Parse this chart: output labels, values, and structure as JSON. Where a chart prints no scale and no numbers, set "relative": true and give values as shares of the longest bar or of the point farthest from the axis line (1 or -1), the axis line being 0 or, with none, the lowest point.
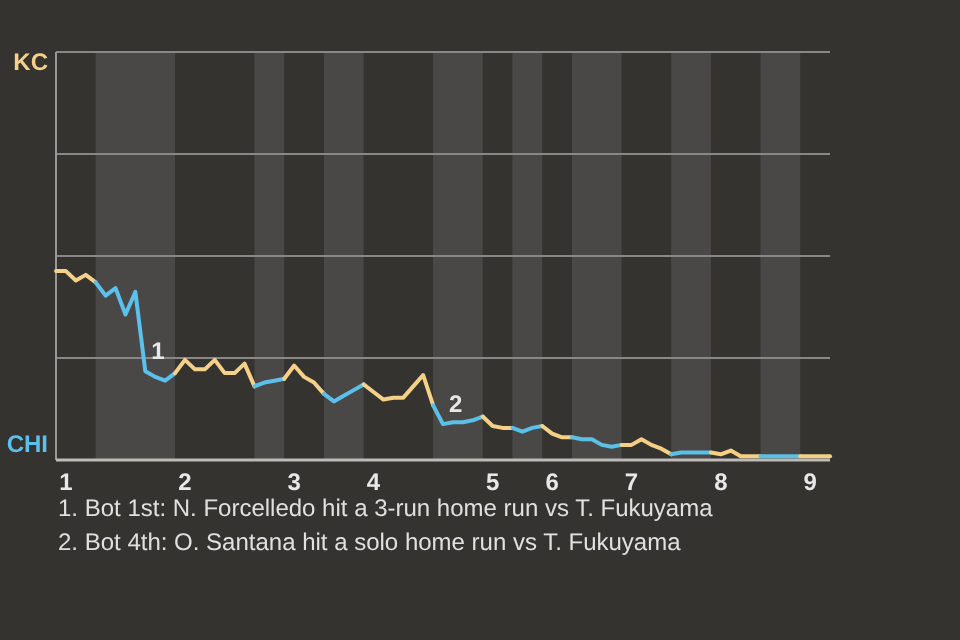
{
  "chart_data": {
    "type": "line",
    "relative": true,
    "categories": [
      null,
      "1",
      null,
      null,
      null,
      null,
      null,
      null,
      null,
      null,
      null,
      null,
      null,
      "2",
      null,
      null,
      null,
      null,
      null,
      null,
      null,
      null,
      null,
      null,
      "3",
      null,
      null,
      null,
      null,
      null,
      null,
      null,
      "4",
      null,
      null,
      null,
      null,
      null,
      null,
      null,
      null,
      null,
      null,
      null,
      "5",
      null,
      null,
      null,
      null,
      null,
      "6",
      null,
      null,
      null,
      null,
      null,
      null,
      null,
      "7",
      null,
      null,
      null,
      null,
      null,
      null,
      null,
      null,
      "8",
      null,
      null,
      null,
      null,
      null,
      null,
      null,
      null,
      "9",
      null,
      null
    ],
    "series": [
      {
        "name": "KC",
        "color": "#f5d08a",
        "values": [
          1,
          1,
          0.95,
          0.98,
          0.94,
          null,
          null,
          null,
          null,
          null,
          null,
          null,
          null,
          null,
          null,
          null,
          null,
          null,
          null,
          null,
          null,
          null,
          null,
          null,
          null,
          null,
          null,
          null,
          null,
          null,
          null,
          null,
          null,
          null,
          null,
          null,
          null,
          null,
          null,
          null,
          null,
          null,
          null,
          null,
          null,
          null,
          null,
          null,
          null,
          null,
          null,
          null,
          null,
          null,
          null,
          null,
          null,
          null,
          null,
          null,
          null,
          null,
          null,
          null,
          null,
          null,
          null,
          null,
          null,
          null,
          null,
          null,
          null,
          null,
          null,
          null,
          null,
          null,
          null
        ]
      },
      {
        "name": "CHI",
        "color": "#5bc0eb",
        "values": [
          null,
          null,
          null,
          null,
          0.94,
          0.87,
          0.91,
          0.77,
          0.89,
          0.47,
          0.44,
          0.42,
          0.46,
          null,
          null,
          null,
          null,
          null,
          null,
          null,
          null,
          null,
          null,
          null,
          null,
          null,
          null,
          null,
          null,
          null,
          null,
          null,
          null,
          null,
          null,
          null,
          null,
          null,
          null,
          null,
          null,
          null,
          null,
          null,
          null,
          null,
          null,
          null,
          null,
          null,
          null,
          null,
          null,
          null,
          null,
          null,
          null,
          null,
          null,
          null,
          null,
          null,
          null,
          null,
          null,
          null,
          null,
          null,
          null,
          null,
          null,
          null,
          null,
          null,
          null,
          null,
          null,
          null,
          null
        ]
      },
      {
        "color": "#f5d089",
        "values": [
          null,
          null,
          null,
          null,
          null,
          null,
          null,
          null,
          null,
          null,
          null,
          null,
          0.46,
          0.53,
          0.48,
          0.48,
          0.53,
          0.46,
          0.46,
          0.51,
          0.39,
          null,
          null,
          null,
          null,
          null,
          null,
          null,
          null,
          null,
          null,
          null,
          null,
          null,
          null,
          null,
          null,
          null,
          null,
          null,
          null,
          null,
          null,
          null,
          null,
          null,
          null,
          null,
          null,
          null,
          null,
          null,
          null,
          null,
          null,
          null,
          null,
          null,
          null,
          null,
          null,
          null,
          null,
          null,
          null,
          null,
          null,
          null,
          null,
          null,
          null,
          null,
          null,
          null,
          null,
          null,
          null,
          null,
          null
        ]
      },
      {
        "color": "#5bc0ea",
        "values": [
          null,
          null,
          null,
          null,
          null,
          null,
          null,
          null,
          null,
          null,
          null,
          null,
          null,
          null,
          null,
          null,
          null,
          null,
          null,
          null,
          0.39,
          0.41,
          0.42,
          0.43,
          null,
          null,
          null,
          null,
          null,
          null,
          null,
          null,
          null,
          null,
          null,
          null,
          null,
          null,
          null,
          null,
          null,
          null,
          null,
          null,
          null,
          null,
          null,
          null,
          null,
          null,
          null,
          null,
          null,
          null,
          null,
          null,
          null,
          null,
          null,
          null,
          null,
          null,
          null,
          null,
          null,
          null,
          null,
          null,
          null,
          null,
          null,
          null,
          null,
          null,
          null,
          null,
          null,
          null,
          null
        ]
      },
      {
        "color": "#f5d088",
        "values": [
          null,
          null,
          null,
          null,
          null,
          null,
          null,
          null,
          null,
          null,
          null,
          null,
          null,
          null,
          null,
          null,
          null,
          null,
          null,
          null,
          null,
          null,
          null,
          0.43,
          0.5,
          0.44,
          0.41,
          0.35,
          null,
          null,
          null,
          null,
          null,
          null,
          null,
          null,
          null,
          null,
          null,
          null,
          null,
          null,
          null,
          null,
          null,
          null,
          null,
          null,
          null,
          null,
          null,
          null,
          null,
          null,
          null,
          null,
          null,
          null,
          null,
          null,
          null,
          null,
          null,
          null,
          null,
          null,
          null,
          null,
          null,
          null,
          null,
          null,
          null,
          null,
          null,
          null,
          null,
          null,
          null
        ]
      },
      {
        "color": "#5bc0e9",
        "values": [
          null,
          null,
          null,
          null,
          null,
          null,
          null,
          null,
          null,
          null,
          null,
          null,
          null,
          null,
          null,
          null,
          null,
          null,
          null,
          null,
          null,
          null,
          null,
          null,
          null,
          null,
          null,
          0.35,
          0.31,
          0.34,
          0.37,
          0.4,
          null,
          null,
          null,
          null,
          null,
          null,
          null,
          null,
          null,
          null,
          null,
          null,
          null,
          null,
          null,
          null,
          null,
          null,
          null,
          null,
          null,
          null,
          null,
          null,
          null,
          null,
          null,
          null,
          null,
          null,
          null,
          null,
          null,
          null,
          null,
          null,
          null,
          null,
          null,
          null,
          null,
          null,
          null,
          null,
          null,
          null,
          null
        ]
      },
      {
        "color": "#f5d087",
        "values": [
          null,
          null,
          null,
          null,
          null,
          null,
          null,
          null,
          null,
          null,
          null,
          null,
          null,
          null,
          null,
          null,
          null,
          null,
          null,
          null,
          null,
          null,
          null,
          null,
          null,
          null,
          null,
          null,
          null,
          null,
          null,
          0.4,
          0.36,
          0.32,
          0.33,
          0.33,
          0.39,
          0.45,
          0.29,
          null,
          null,
          null,
          null,
          null,
          null,
          null,
          null,
          null,
          null,
          null,
          null,
          null,
          null,
          null,
          null,
          null,
          null,
          null,
          null,
          null,
          null,
          null,
          null,
          null,
          null,
          null,
          null,
          null,
          null,
          null,
          null,
          null,
          null,
          null,
          null,
          null,
          null,
          null,
          null
        ]
      },
      {
        "color": "#5bc0e8",
        "values": [
          null,
          null,
          null,
          null,
          null,
          null,
          null,
          null,
          null,
          null,
          null,
          null,
          null,
          null,
          null,
          null,
          null,
          null,
          null,
          null,
          null,
          null,
          null,
          null,
          null,
          null,
          null,
          null,
          null,
          null,
          null,
          null,
          null,
          null,
          null,
          null,
          null,
          null,
          0.29,
          0.19,
          0.2,
          0.2,
          0.21,
          0.23,
          null,
          null,
          null,
          null,
          null,
          null,
          null,
          null,
          null,
          null,
          null,
          null,
          null,
          null,
          null,
          null,
          null,
          null,
          null,
          null,
          null,
          null,
          null,
          null,
          null,
          null,
          null,
          null,
          null,
          null,
          null,
          null,
          null,
          null,
          null
        ]
      },
      {
        "color": "#f5d086",
        "values": [
          null,
          null,
          null,
          null,
          null,
          null,
          null,
          null,
          null,
          null,
          null,
          null,
          null,
          null,
          null,
          null,
          null,
          null,
          null,
          null,
          null,
          null,
          null,
          null,
          null,
          null,
          null,
          null,
          null,
          null,
          null,
          null,
          null,
          null,
          null,
          null,
          null,
          null,
          null,
          null,
          null,
          null,
          null,
          0.23,
          0.18,
          0.17,
          0.17,
          null,
          null,
          null,
          null,
          null,
          null,
          null,
          null,
          null,
          null,
          null,
          null,
          null,
          null,
          null,
          null,
          null,
          null,
          null,
          null,
          null,
          null,
          null,
          null,
          null,
          null,
          null,
          null,
          null,
          null,
          null,
          null
        ]
      },
      {
        "color": "#5bc0e7",
        "values": [
          null,
          null,
          null,
          null,
          null,
          null,
          null,
          null,
          null,
          null,
          null,
          null,
          null,
          null,
          null,
          null,
          null,
          null,
          null,
          null,
          null,
          null,
          null,
          null,
          null,
          null,
          null,
          null,
          null,
          null,
          null,
          null,
          null,
          null,
          null,
          null,
          null,
          null,
          null,
          null,
          null,
          null,
          null,
          null,
          null,
          null,
          0.17,
          0.15,
          0.17,
          0.18,
          null,
          null,
          null,
          null,
          null,
          null,
          null,
          null,
          null,
          null,
          null,
          null,
          null,
          null,
          null,
          null,
          null,
          null,
          null,
          null,
          null,
          null,
          null,
          null,
          null,
          null,
          null,
          null,
          null
        ]
      },
      {
        "color": "#f5d085",
        "values": [
          null,
          null,
          null,
          null,
          null,
          null,
          null,
          null,
          null,
          null,
          null,
          null,
          null,
          null,
          null,
          null,
          null,
          null,
          null,
          null,
          null,
          null,
          null,
          null,
          null,
          null,
          null,
          null,
          null,
          null,
          null,
          null,
          null,
          null,
          null,
          null,
          null,
          null,
          null,
          null,
          null,
          null,
          null,
          null,
          null,
          null,
          null,
          null,
          null,
          0.18,
          0.14,
          0.12,
          0.12,
          null,
          null,
          null,
          null,
          null,
          null,
          null,
          null,
          null,
          null,
          null,
          null,
          null,
          null,
          null,
          null,
          null,
          null,
          null,
          null,
          null,
          null,
          null,
          null,
          null,
          null
        ]
      },
      {
        "color": "#5bc0e6",
        "values": [
          null,
          null,
          null,
          null,
          null,
          null,
          null,
          null,
          null,
          null,
          null,
          null,
          null,
          null,
          null,
          null,
          null,
          null,
          null,
          null,
          null,
          null,
          null,
          null,
          null,
          null,
          null,
          null,
          null,
          null,
          null,
          null,
          null,
          null,
          null,
          null,
          null,
          null,
          null,
          null,
          null,
          null,
          null,
          null,
          null,
          null,
          null,
          null,
          null,
          null,
          null,
          null,
          0.12,
          0.11,
          0.11,
          0.08,
          0.07,
          0.08,
          null,
          null,
          null,
          null,
          null,
          null,
          null,
          null,
          null,
          null,
          null,
          null,
          null,
          null,
          null,
          null,
          null,
          null,
          null,
          null,
          null
        ]
      },
      {
        "color": "#f5d084",
        "values": [
          null,
          null,
          null,
          null,
          null,
          null,
          null,
          null,
          null,
          null,
          null,
          null,
          null,
          null,
          null,
          null,
          null,
          null,
          null,
          null,
          null,
          null,
          null,
          null,
          null,
          null,
          null,
          null,
          null,
          null,
          null,
          null,
          null,
          null,
          null,
          null,
          null,
          null,
          null,
          null,
          null,
          null,
          null,
          null,
          null,
          null,
          null,
          null,
          null,
          null,
          null,
          null,
          null,
          null,
          null,
          null,
          null,
          0.08,
          0.08,
          0.11,
          0.08,
          0.06,
          0.03,
          null,
          null,
          null,
          null,
          null,
          null,
          null,
          null,
          null,
          null,
          null,
          null,
          null,
          null,
          null,
          null
        ]
      },
      {
        "color": "#5bc0e5",
        "values": [
          null,
          null,
          null,
          null,
          null,
          null,
          null,
          null,
          null,
          null,
          null,
          null,
          null,
          null,
          null,
          null,
          null,
          null,
          null,
          null,
          null,
          null,
          null,
          null,
          null,
          null,
          null,
          null,
          null,
          null,
          null,
          null,
          null,
          null,
          null,
          null,
          null,
          null,
          null,
          null,
          null,
          null,
          null,
          null,
          null,
          null,
          null,
          null,
          null,
          null,
          null,
          null,
          null,
          null,
          null,
          null,
          null,
          null,
          null,
          null,
          null,
          null,
          0.03,
          0.04,
          0.04,
          0.04,
          0.04,
          null,
          null,
          null,
          null,
          null,
          null,
          null,
          null,
          null,
          null,
          null,
          null
        ]
      },
      {
        "color": "#f5d083",
        "values": [
          null,
          null,
          null,
          null,
          null,
          null,
          null,
          null,
          null,
          null,
          null,
          null,
          null,
          null,
          null,
          null,
          null,
          null,
          null,
          null,
          null,
          null,
          null,
          null,
          null,
          null,
          null,
          null,
          null,
          null,
          null,
          null,
          null,
          null,
          null,
          null,
          null,
          null,
          null,
          null,
          null,
          null,
          null,
          null,
          null,
          null,
          null,
          null,
          null,
          null,
          null,
          null,
          null,
          null,
          null,
          null,
          null,
          null,
          null,
          null,
          null,
          null,
          null,
          null,
          null,
          null,
          0.04,
          0.03,
          0.05,
          0.02,
          0.02,
          0.02,
          null,
          null,
          null,
          null,
          null,
          null,
          null
        ]
      },
      {
        "color": "#5bc0e4",
        "values": [
          null,
          null,
          null,
          null,
          null,
          null,
          null,
          null,
          null,
          null,
          null,
          null,
          null,
          null,
          null,
          null,
          null,
          null,
          null,
          null,
          null,
          null,
          null,
          null,
          null,
          null,
          null,
          null,
          null,
          null,
          null,
          null,
          null,
          null,
          null,
          null,
          null,
          null,
          null,
          null,
          null,
          null,
          null,
          null,
          null,
          null,
          null,
          null,
          null,
          null,
          null,
          null,
          null,
          null,
          null,
          null,
          null,
          null,
          null,
          null,
          null,
          null,
          null,
          null,
          null,
          null,
          null,
          null,
          null,
          null,
          null,
          0.02,
          0.02,
          0.02,
          0.02,
          0.02,
          null,
          null,
          null
        ]
      },
      {
        "color": "#f5d082",
        "values": [
          null,
          null,
          null,
          null,
          null,
          null,
          null,
          null,
          null,
          null,
          null,
          null,
          null,
          null,
          null,
          null,
          null,
          null,
          null,
          null,
          null,
          null,
          null,
          null,
          null,
          null,
          null,
          null,
          null,
          null,
          null,
          null,
          null,
          null,
          null,
          null,
          null,
          null,
          null,
          null,
          null,
          null,
          null,
          null,
          null,
          null,
          null,
          null,
          null,
          null,
          null,
          null,
          null,
          null,
          null,
          null,
          null,
          null,
          null,
          null,
          null,
          null,
          null,
          null,
          null,
          null,
          null,
          null,
          null,
          null,
          null,
          null,
          null,
          null,
          null,
          0.02,
          0.02,
          0.02,
          0.02
        ]
      }
    ],
    "ref_lines": [
      {
        "axis": "y",
        "value": 0.54,
        "color": "#8a8886"
      },
      {
        "axis": "y",
        "value": 1.08,
        "color": "#8a8886"
      },
      {
        "axis": "y",
        "value": 1.62,
        "color": "#8a8886"
      },
      {
        "axis": "y",
        "value": 2.16,
        "color": "#8a8886"
      }
    ],
    "line_style": "solid",
    "marker": "none",
    "annotations": [
      {
        "text": "1",
        "y": 0.47
      },
      {
        "text": "2",
        "y": 0.19
      },
      "1. Bot 1st: N. Forcelledo hit a 3-run home run vs T. Fukuyama",
      "2. Bot 4th: O. Santana hit a solo home run vs T. Fukuyama"
    ]
  }
}
